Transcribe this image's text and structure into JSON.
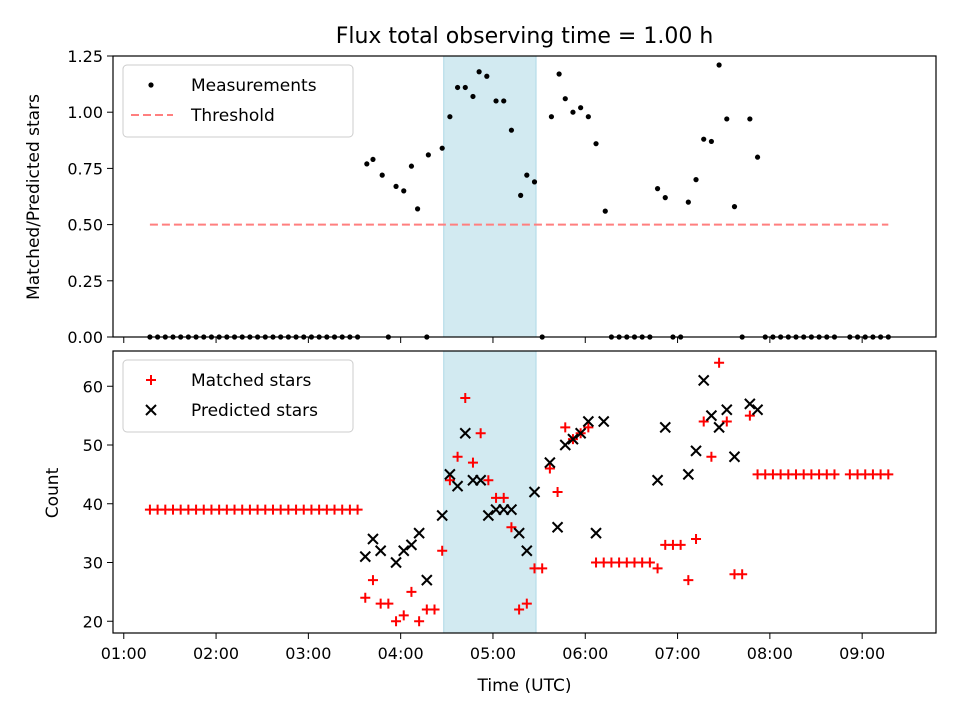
{
  "chart_data": [
    {
      "type": "scatter",
      "title": "Flux total observing time = 1.00 h",
      "xlabel": "",
      "ylabel": "Matched/Predicted stars",
      "ylim": [
        0,
        1.25
      ],
      "yticks": [
        "0.00",
        "0.25",
        "0.50",
        "0.75",
        "1.00",
        "1.25"
      ],
      "xlim": [
        "00:53",
        "09:48"
      ],
      "shaded_interval": [
        "04:28",
        "05:28"
      ],
      "shade_color": "#add8e6",
      "legend_position": "upper left",
      "series": [
        {
          "name": "Measurements",
          "kind": "points",
          "color": "#000000",
          "points": [
            [
              "03:38",
              0.77
            ],
            [
              "03:42",
              0.79
            ],
            [
              "03:48",
              0.72
            ],
            [
              "03:57",
              0.67
            ],
            [
              "04:02",
              0.65
            ],
            [
              "04:07",
              0.76
            ],
            [
              "04:11",
              0.57
            ],
            [
              "04:18",
              0.81
            ],
            [
              "04:27",
              0.84
            ],
            [
              "04:32",
              0.98
            ],
            [
              "04:37",
              1.11
            ],
            [
              "04:42",
              1.11
            ],
            [
              "04:47",
              1.07
            ],
            [
              "04:51",
              1.18
            ],
            [
              "04:56",
              1.16
            ],
            [
              "05:02",
              1.05
            ],
            [
              "05:07",
              1.05
            ],
            [
              "05:12",
              0.92
            ],
            [
              "05:18",
              0.63
            ],
            [
              "05:22",
              0.72
            ],
            [
              "05:27",
              0.69
            ],
            [
              "05:38",
              0.98
            ],
            [
              "05:43",
              1.17
            ],
            [
              "05:47",
              1.06
            ],
            [
              "05:52",
              1.0
            ],
            [
              "05:57",
              1.02
            ],
            [
              "06:02",
              0.98
            ],
            [
              "06:07",
              0.86
            ],
            [
              "06:13",
              0.56
            ],
            [
              "06:47",
              0.66
            ],
            [
              "06:52",
              0.62
            ],
            [
              "07:07",
              0.6
            ],
            [
              "07:12",
              0.7
            ],
            [
              "07:17",
              0.88
            ],
            [
              "07:22",
              0.87
            ],
            [
              "07:27",
              1.21
            ],
            [
              "07:32",
              0.97
            ],
            [
              "07:37",
              0.58
            ],
            [
              "07:47",
              0.97
            ],
            [
              "07:52",
              0.8
            ],
            [
              "01:17",
              0
            ],
            [
              "01:22",
              0
            ],
            [
              "01:27",
              0
            ],
            [
              "01:32",
              0
            ],
            [
              "01:37",
              0
            ],
            [
              "01:42",
              0
            ],
            [
              "01:47",
              0
            ],
            [
              "01:52",
              0
            ],
            [
              "01:57",
              0
            ],
            [
              "02:02",
              0
            ],
            [
              "02:07",
              0
            ],
            [
              "02:12",
              0
            ],
            [
              "02:17",
              0
            ],
            [
              "02:22",
              0
            ],
            [
              "02:27",
              0
            ],
            [
              "02:32",
              0
            ],
            [
              "02:37",
              0
            ],
            [
              "02:42",
              0
            ],
            [
              "02:47",
              0
            ],
            [
              "02:52",
              0
            ],
            [
              "02:57",
              0
            ],
            [
              "03:02",
              0
            ],
            [
              "03:07",
              0
            ],
            [
              "03:12",
              0
            ],
            [
              "03:17",
              0
            ],
            [
              "03:22",
              0
            ],
            [
              "03:27",
              0
            ],
            [
              "03:32",
              0
            ],
            [
              "03:52",
              0
            ],
            [
              "04:17",
              0
            ],
            [
              "05:32",
              0
            ],
            [
              "06:17",
              0
            ],
            [
              "06:22",
              0
            ],
            [
              "06:27",
              0
            ],
            [
              "06:32",
              0
            ],
            [
              "06:37",
              0
            ],
            [
              "06:42",
              0
            ],
            [
              "06:57",
              0
            ],
            [
              "07:02",
              0
            ],
            [
              "07:42",
              0
            ],
            [
              "07:57",
              0
            ],
            [
              "08:02",
              0
            ],
            [
              "08:07",
              0
            ],
            [
              "08:12",
              0
            ],
            [
              "08:17",
              0
            ],
            [
              "08:22",
              0
            ],
            [
              "08:27",
              0
            ],
            [
              "08:32",
              0
            ],
            [
              "08:37",
              0
            ],
            [
              "08:42",
              0
            ],
            [
              "08:52",
              0
            ],
            [
              "08:57",
              0
            ],
            [
              "09:02",
              0
            ],
            [
              "09:07",
              0
            ],
            [
              "09:12",
              0
            ],
            [
              "09:17",
              0
            ]
          ]
        },
        {
          "name": "Threshold",
          "kind": "dashed-line",
          "color": "#ff7f7f",
          "points": [
            [
              "01:17",
              0.5
            ],
            [
              "09:17",
              0.5
            ]
          ]
        }
      ]
    },
    {
      "type": "scatter",
      "title": "",
      "xlabel": "Time (UTC)",
      "ylabel": "Count",
      "ylim": [
        18,
        66
      ],
      "yticks": [
        "20",
        "30",
        "40",
        "50",
        "60"
      ],
      "xlim": [
        "00:53",
        "09:48"
      ],
      "xticks": [
        "01:00",
        "02:00",
        "03:00",
        "04:00",
        "05:00",
        "06:00",
        "07:00",
        "08:00",
        "09:00"
      ],
      "shaded_interval": [
        "04:28",
        "05:28"
      ],
      "shade_color": "#add8e6",
      "legend_position": "upper left",
      "series": [
        {
          "name": "Matched stars",
          "kind": "plus",
          "color": "#ff0000",
          "points": [
            [
              "01:17",
              39
            ],
            [
              "01:22",
              39
            ],
            [
              "01:27",
              39
            ],
            [
              "01:32",
              39
            ],
            [
              "01:37",
              39
            ],
            [
              "01:42",
              39
            ],
            [
              "01:47",
              39
            ],
            [
              "01:52",
              39
            ],
            [
              "01:57",
              39
            ],
            [
              "02:02",
              39
            ],
            [
              "02:07",
              39
            ],
            [
              "02:12",
              39
            ],
            [
              "02:17",
              39
            ],
            [
              "02:22",
              39
            ],
            [
              "02:27",
              39
            ],
            [
              "02:32",
              39
            ],
            [
              "02:37",
              39
            ],
            [
              "02:42",
              39
            ],
            [
              "02:47",
              39
            ],
            [
              "02:52",
              39
            ],
            [
              "02:57",
              39
            ],
            [
              "03:02",
              39
            ],
            [
              "03:07",
              39
            ],
            [
              "03:12",
              39
            ],
            [
              "03:17",
              39
            ],
            [
              "03:22",
              39
            ],
            [
              "03:27",
              39
            ],
            [
              "03:32",
              39
            ],
            [
              "03:37",
              24
            ],
            [
              "03:42",
              27
            ],
            [
              "03:47",
              23
            ],
            [
              "03:52",
              23
            ],
            [
              "03:57",
              20
            ],
            [
              "04:02",
              21
            ],
            [
              "04:07",
              25
            ],
            [
              "04:12",
              20
            ],
            [
              "04:17",
              22
            ],
            [
              "04:22",
              22
            ],
            [
              "04:27",
              32
            ],
            [
              "04:32",
              44
            ],
            [
              "04:37",
              48
            ],
            [
              "04:42",
              58
            ],
            [
              "04:47",
              47
            ],
            [
              "04:52",
              52
            ],
            [
              "04:57",
              44
            ],
            [
              "05:02",
              41
            ],
            [
              "05:07",
              41
            ],
            [
              "05:12",
              36
            ],
            [
              "05:17",
              22
            ],
            [
              "05:22",
              23
            ],
            [
              "05:27",
              29
            ],
            [
              "05:32",
              29
            ],
            [
              "05:37",
              46
            ],
            [
              "05:42",
              42
            ],
            [
              "05:47",
              53
            ],
            [
              "05:52",
              51
            ],
            [
              "05:57",
              52
            ],
            [
              "06:02",
              53
            ],
            [
              "06:07",
              30
            ],
            [
              "06:12",
              30
            ],
            [
              "06:17",
              30
            ],
            [
              "06:22",
              30
            ],
            [
              "06:27",
              30
            ],
            [
              "06:32",
              30
            ],
            [
              "06:37",
              30
            ],
            [
              "06:42",
              30
            ],
            [
              "06:47",
              29
            ],
            [
              "06:52",
              33
            ],
            [
              "06:57",
              33
            ],
            [
              "07:02",
              33
            ],
            [
              "07:07",
              27
            ],
            [
              "07:12",
              34
            ],
            [
              "07:17",
              54
            ],
            [
              "07:22",
              48
            ],
            [
              "07:27",
              64
            ],
            [
              "07:32",
              54
            ],
            [
              "07:37",
              28
            ],
            [
              "07:42",
              28
            ],
            [
              "07:47",
              55
            ],
            [
              "07:52",
              45
            ],
            [
              "07:57",
              45
            ],
            [
              "08:02",
              45
            ],
            [
              "08:07",
              45
            ],
            [
              "08:12",
              45
            ],
            [
              "08:17",
              45
            ],
            [
              "08:22",
              45
            ],
            [
              "08:27",
              45
            ],
            [
              "08:32",
              45
            ],
            [
              "08:37",
              45
            ],
            [
              "08:42",
              45
            ],
            [
              "08:52",
              45
            ],
            [
              "08:57",
              45
            ],
            [
              "09:02",
              45
            ],
            [
              "09:07",
              45
            ],
            [
              "09:12",
              45
            ],
            [
              "09:17",
              45
            ]
          ]
        },
        {
          "name": "Predicted stars",
          "kind": "cross",
          "color": "#000000",
          "points": [
            [
              "03:37",
              31
            ],
            [
              "03:42",
              34
            ],
            [
              "03:47",
              32
            ],
            [
              "03:57",
              30
            ],
            [
              "04:02",
              32
            ],
            [
              "04:07",
              33
            ],
            [
              "04:12",
              35
            ],
            [
              "04:17",
              27
            ],
            [
              "04:27",
              38
            ],
            [
              "04:32",
              45
            ],
            [
              "04:37",
              43
            ],
            [
              "04:42",
              52
            ],
            [
              "04:47",
              44
            ],
            [
              "04:52",
              44
            ],
            [
              "04:57",
              38
            ],
            [
              "05:02",
              39
            ],
            [
              "05:07",
              39
            ],
            [
              "05:12",
              39
            ],
            [
              "05:17",
              35
            ],
            [
              "05:22",
              32
            ],
            [
              "05:27",
              42
            ],
            [
              "05:37",
              47
            ],
            [
              "05:42",
              36
            ],
            [
              "05:47",
              50
            ],
            [
              "05:52",
              51
            ],
            [
              "05:57",
              52
            ],
            [
              "06:02",
              54
            ],
            [
              "06:07",
              35
            ],
            [
              "06:12",
              54
            ],
            [
              "06:47",
              44
            ],
            [
              "06:52",
              53
            ],
            [
              "07:07",
              45
            ],
            [
              "07:12",
              49
            ],
            [
              "07:17",
              61
            ],
            [
              "07:22",
              55
            ],
            [
              "07:27",
              53
            ],
            [
              "07:32",
              56
            ],
            [
              "07:37",
              48
            ],
            [
              "07:47",
              57
            ],
            [
              "07:52",
              56
            ]
          ]
        }
      ]
    }
  ]
}
